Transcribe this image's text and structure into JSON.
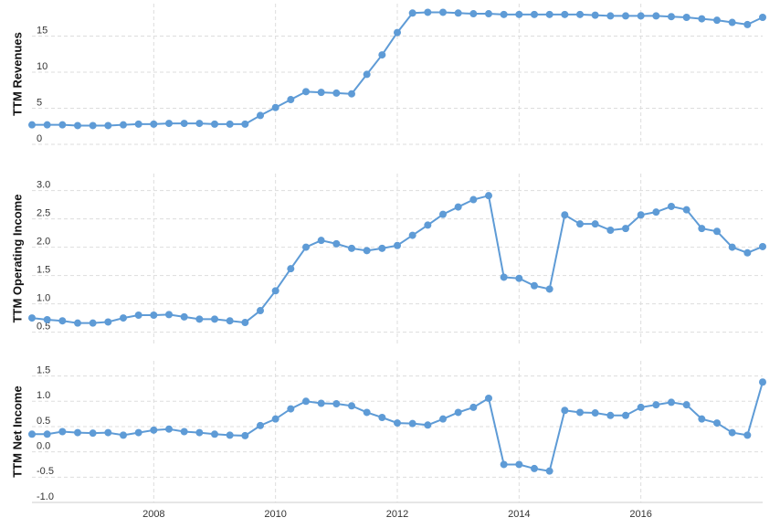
{
  "chart_data": [
    {
      "type": "line",
      "y_label": "TTM Revenues",
      "x": [
        2006,
        2006.25,
        2006.5,
        2006.75,
        2007,
        2007.25,
        2007.5,
        2007.75,
        2008,
        2008.25,
        2008.5,
        2008.75,
        2009,
        2009.25,
        2009.5,
        2009.75,
        2010,
        2010.25,
        2010.5,
        2010.75,
        2011,
        2011.25,
        2011.5,
        2011.75,
        2012,
        2012.25,
        2012.5,
        2012.75,
        2013,
        2013.25,
        2013.5,
        2013.75,
        2014,
        2014.25,
        2014.5,
        2014.75,
        2015,
        2015.25,
        2015.5,
        2015.75,
        2016,
        2016.25,
        2016.5,
        2016.75,
        2017,
        2017.25,
        2017.5,
        2017.75,
        2018
      ],
      "series": [
        {
          "name": "TTM Revenues",
          "color": "#5e9bd6",
          "values": [
            2.7,
            2.7,
            2.7,
            2.6,
            2.6,
            2.6,
            2.7,
            2.8,
            2.8,
            2.9,
            2.9,
            2.9,
            2.8,
            2.8,
            2.8,
            4.0,
            5.1,
            6.2,
            7.3,
            7.2,
            7.1,
            7.0,
            9.7,
            12.4,
            15.5,
            18.2,
            18.3,
            18.3,
            18.2,
            18.1,
            18.1,
            18.0,
            18.0,
            18.0,
            18.0,
            18.0,
            18.0,
            17.9,
            17.8,
            17.8,
            17.8,
            17.8,
            17.7,
            17.6,
            17.4,
            17.2,
            16.9,
            16.6,
            17.6
          ]
        }
      ],
      "xlim": [
        2006,
        2018
      ],
      "ylim": [
        0,
        19.5
      ],
      "yticks": [
        0,
        5,
        10,
        15
      ],
      "grid": true
    },
    {
      "type": "line",
      "y_label": "TTM Operating Income",
      "x": [
        2006,
        2006.25,
        2006.5,
        2006.75,
        2007,
        2007.25,
        2007.5,
        2007.75,
        2008,
        2008.25,
        2008.5,
        2008.75,
        2009,
        2009.25,
        2009.5,
        2009.75,
        2010,
        2010.25,
        2010.5,
        2010.75,
        2011,
        2011.25,
        2011.5,
        2011.75,
        2012,
        2012.25,
        2012.5,
        2012.75,
        2013,
        2013.25,
        2013.5,
        2013.75,
        2014,
        2014.25,
        2014.5,
        2014.75,
        2015,
        2015.25,
        2015.5,
        2015.75,
        2016,
        2016.25,
        2016.5,
        2016.75,
        2017,
        2017.25,
        2017.5,
        2017.75,
        2018
      ],
      "series": [
        {
          "name": "TTM Operating Income",
          "color": "#5e9bd6",
          "values": [
            0.75,
            0.72,
            0.7,
            0.66,
            0.66,
            0.68,
            0.75,
            0.8,
            0.8,
            0.81,
            0.77,
            0.73,
            0.73,
            0.7,
            0.67,
            0.88,
            1.23,
            1.62,
            2.0,
            2.12,
            2.06,
            1.98,
            1.94,
            1.98,
            2.03,
            2.21,
            2.39,
            2.58,
            2.71,
            2.84,
            2.91,
            1.47,
            1.45,
            1.32,
            1.26,
            2.57,
            2.41,
            2.41,
            2.3,
            2.33,
            2.57,
            2.62,
            2.72,
            2.66,
            2.33,
            2.28,
            2.0,
            1.9,
            2.01
          ]
        }
      ],
      "xlim": [
        2006,
        2018
      ],
      "ylim": [
        0.3,
        3.3
      ],
      "yticks": [
        {
          "value": 0.5,
          "label": "0.5"
        },
        {
          "value": 1,
          "label": "1.0"
        },
        {
          "value": 1.5,
          "label": "1.5"
        },
        {
          "value": 2,
          "label": "2.0"
        },
        {
          "value": 2.5,
          "label": "2.5"
        },
        {
          "value": 3,
          "label": "3.0"
        }
      ],
      "grid": true
    },
    {
      "type": "line",
      "y_label": "TTM Net Income",
      "x": [
        2006,
        2006.25,
        2006.5,
        2006.75,
        2007,
        2007.25,
        2007.5,
        2007.75,
        2008,
        2008.25,
        2008.5,
        2008.75,
        2009,
        2009.25,
        2009.5,
        2009.75,
        2010,
        2010.25,
        2010.5,
        2010.75,
        2011,
        2011.25,
        2011.5,
        2011.75,
        2012,
        2012.25,
        2012.5,
        2012.75,
        2013,
        2013.25,
        2013.5,
        2013.75,
        2014,
        2014.25,
        2014.5,
        2014.75,
        2015,
        2015.25,
        2015.5,
        2015.75,
        2016,
        2016.25,
        2016.5,
        2016.75,
        2017,
        2017.25,
        2017.5,
        2017.75,
        2018
      ],
      "series": [
        {
          "name": "TTM Net Income",
          "color": "#5e9bd6",
          "values": [
            0.35,
            0.35,
            0.4,
            0.38,
            0.37,
            0.38,
            0.33,
            0.38,
            0.43,
            0.45,
            0.4,
            0.38,
            0.35,
            0.33,
            0.32,
            0.52,
            0.65,
            0.85,
            1.0,
            0.96,
            0.95,
            0.91,
            0.78,
            0.68,
            0.57,
            0.56,
            0.53,
            0.65,
            0.78,
            0.88,
            1.06,
            -0.25,
            -0.25,
            -0.33,
            -0.38,
            0.82,
            0.78,
            0.77,
            0.72,
            0.72,
            0.88,
            0.93,
            0.98,
            0.93,
            0.65,
            0.57,
            0.38,
            0.33,
            1.38
          ]
        }
      ],
      "xlim": [
        2006,
        2018
      ],
      "ylim": [
        -1.0,
        1.8
      ],
      "yticks": [
        {
          "value": -1,
          "label": "-1.0"
        },
        {
          "value": -0.5,
          "label": "-0.5"
        },
        {
          "value": 0,
          "label": "0.0"
        },
        {
          "value": 0.5,
          "label": "0.5"
        },
        {
          "value": 1,
          "label": "1.0"
        },
        {
          "value": 1.5,
          "label": "1.5"
        }
      ],
      "xticks": [
        2008,
        2010,
        2012,
        2014,
        2016
      ],
      "grid": true
    }
  ]
}
